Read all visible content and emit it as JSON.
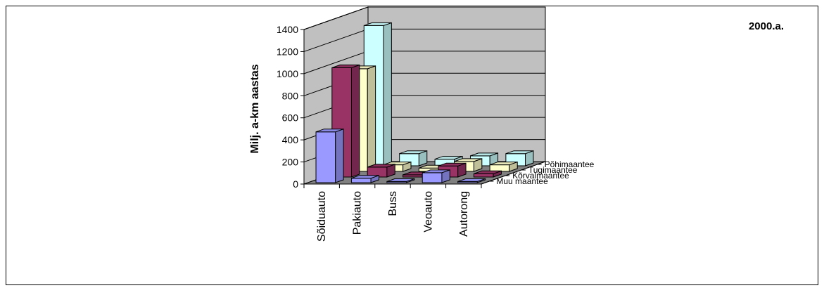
{
  "chart_data": {
    "type": "bar",
    "subtype": "3d-clustered-depth",
    "title": "2000.a.",
    "ylabel": "Milj. a-km aastas",
    "xlabel": "",
    "ylim": [
      0,
      1400
    ],
    "yticks": [
      "0",
      "200",
      "400",
      "600",
      "800",
      "1000",
      "1200",
      "1400"
    ],
    "categories": [
      "Sõiduauto",
      "Pakiauto",
      "Buss",
      "Veoauto",
      "Autorong"
    ],
    "series": [
      {
        "name": "Muu maantee",
        "values": [
          460,
          40,
          10,
          90,
          10
        ],
        "color": "#9999ff"
      },
      {
        "name": "Kõrvalmaantee",
        "values": [
          990,
          90,
          20,
          100,
          30
        ],
        "color": "#993366"
      },
      {
        "name": "Tugimaantee",
        "values": [
          930,
          60,
          30,
          90,
          60
        ],
        "color": "#ffffcc"
      },
      {
        "name": "Põhimaantee",
        "values": [
          1270,
          110,
          60,
          90,
          110
        ],
        "color": "#ccffff"
      }
    ],
    "grid": true,
    "legend": "none"
  }
}
